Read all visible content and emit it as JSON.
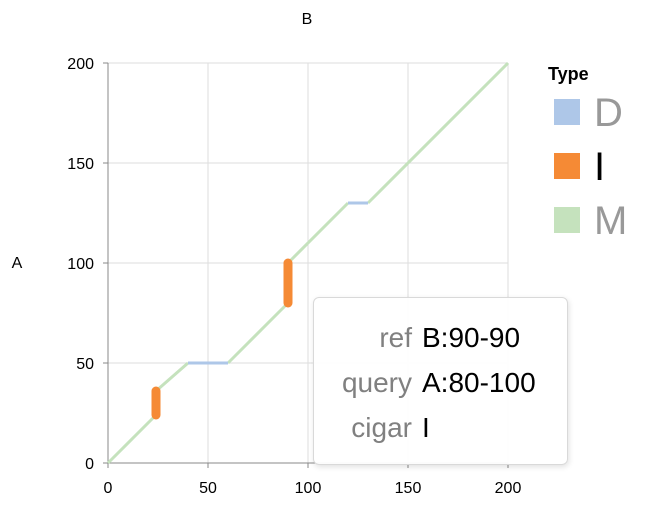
{
  "chart_data": {
    "type": "line",
    "title": "",
    "xlabel": "B",
    "ylabel": "A",
    "xlim": [
      0,
      200
    ],
    "ylim": [
      0,
      200
    ],
    "x_ticks": [
      0,
      50,
      100,
      150,
      200
    ],
    "y_ticks": [
      0,
      50,
      100,
      150,
      200
    ],
    "grid": true,
    "legend": {
      "title": "Type",
      "placement": "right",
      "items": [
        {
          "label": "D",
          "color": "#aec7e8",
          "text_color": "#999999"
        },
        {
          "label": "I",
          "color": "#f58a35",
          "text_color": "#000000"
        },
        {
          "label": "M",
          "color": "#c5e2bd",
          "text_color": "#999999"
        }
      ]
    },
    "segments": [
      {
        "type": "M",
        "x1": 0,
        "y1": 0,
        "x2": 24,
        "y2": 24
      },
      {
        "type": "I",
        "x1": 24,
        "y1": 24,
        "x2": 24,
        "y2": 36
      },
      {
        "type": "M",
        "x1": 24,
        "y1": 36,
        "x2": 40,
        "y2": 50
      },
      {
        "type": "D",
        "x1": 40,
        "y1": 50,
        "x2": 60,
        "y2": 50
      },
      {
        "type": "M",
        "x1": 60,
        "y1": 50,
        "x2": 90,
        "y2": 80
      },
      {
        "type": "I",
        "x1": 90,
        "y1": 80,
        "x2": 90,
        "y2": 100
      },
      {
        "type": "M",
        "x1": 90,
        "y1": 100,
        "x2": 120,
        "y2": 130
      },
      {
        "type": "D",
        "x1": 120,
        "y1": 130,
        "x2": 130,
        "y2": 130
      },
      {
        "type": "M",
        "x1": 130,
        "y1": 130,
        "x2": 200,
        "y2": 200
      }
    ]
  },
  "tooltip": {
    "rows": [
      {
        "key": "ref",
        "value": "B:90-90"
      },
      {
        "key": "query",
        "value": "A:80-100"
      },
      {
        "key": "cigar",
        "value": "I"
      }
    ]
  }
}
